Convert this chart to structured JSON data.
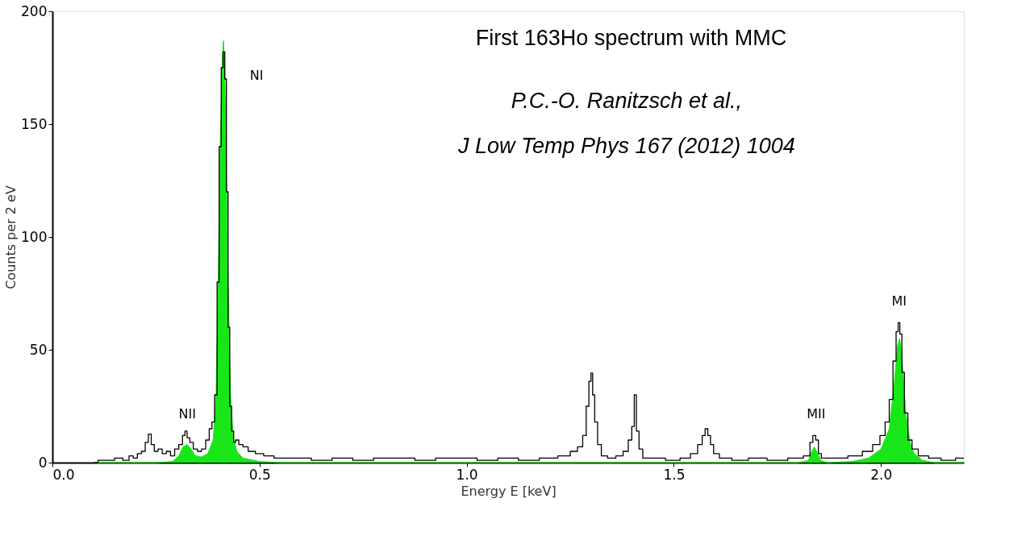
{
  "chart_data": {
    "type": "step",
    "line_style": "solid",
    "title": "First 163Ho spectrum with MMC",
    "xlabel": "Energy E  [keV]",
    "ylabel": "Counts per  2 eV",
    "xlim": [
      0,
      2.2
    ],
    "ylim": [
      0,
      200
    ],
    "xticks": [
      {
        "value": 0,
        "label": "0.0"
      },
      0.5,
      {
        "value": 1,
        "label": "1.0"
      },
      1.5,
      {
        "value": 2,
        "label": "2.0"
      }
    ],
    "yticks": [
      0,
      50,
      100,
      150,
      200
    ],
    "grid": false,
    "annotations": [
      "P.C.-O. Ranitzsch et al.,\nJ Low Temp Phys 167 (2012) 1004",
      "NI",
      "NII",
      "MII",
      "MI"
    ],
    "series": [
      {
        "type": "area",
        "color": "#19e619",
        "x": [
          0.1,
          0.25,
          0.29,
          0.305,
          0.315,
          0.325,
          0.335,
          0.345,
          0.36,
          0.375,
          0.388,
          0.395,
          0.4,
          0.405,
          0.41,
          0.413,
          0.416,
          0.42,
          0.425,
          0.43,
          0.436,
          0.445,
          0.46,
          0.5,
          0.55,
          1.8,
          1.825,
          1.833,
          1.839,
          1.845,
          1.855,
          1.87,
          1.93,
          1.97,
          2.0,
          2.02,
          2.032,
          2.04,
          2.045,
          2.05,
          2.06,
          2.07,
          2.08,
          2.1,
          2.13,
          2.2
        ],
        "values": [
          0,
          0,
          0.5,
          3,
          7,
          8,
          6,
          3,
          2.5,
          4,
          10,
          30,
          80,
          140,
          180,
          187,
          175,
          130,
          70,
          30,
          12,
          5,
          2,
          0.5,
          0,
          0,
          1,
          5,
          7,
          5,
          1,
          0,
          0.5,
          2,
          6,
          15,
          35,
          52,
          55,
          48,
          22,
          9,
          4,
          1,
          0,
          0
        ]
      },
      {
        "color": "#000000",
        "x": [
          0.1,
          0.12,
          0.14,
          0.16,
          0.18,
          0.19,
          0.2,
          0.21,
          0.22,
          0.228,
          0.235,
          0.242,
          0.25,
          0.26,
          0.27,
          0.28,
          0.29,
          0.3,
          0.31,
          0.318,
          0.322,
          0.328,
          0.335,
          0.345,
          0.355,
          0.365,
          0.375,
          0.382,
          0.388,
          0.395,
          0.4,
          0.405,
          0.41,
          0.414,
          0.418,
          0.422,
          0.426,
          0.43,
          0.435,
          0.44,
          0.445,
          0.455,
          0.465,
          0.48,
          0.5,
          0.52,
          0.55,
          0.6,
          0.65,
          0.7,
          0.75,
          0.8,
          0.85,
          0.9,
          0.95,
          1.0,
          1.05,
          1.1,
          1.15,
          1.2,
          1.24,
          1.26,
          1.275,
          1.285,
          1.292,
          1.298,
          1.302,
          1.306,
          1.312,
          1.32,
          1.33,
          1.35,
          1.37,
          1.385,
          1.395,
          1.402,
          1.407,
          1.412,
          1.42,
          1.43,
          1.46,
          1.5,
          1.53,
          1.55,
          1.565,
          1.572,
          1.579,
          1.585,
          1.592,
          1.6,
          1.62,
          1.66,
          1.7,
          1.75,
          1.8,
          1.825,
          1.832,
          1.839,
          1.846,
          1.852,
          1.86,
          1.9,
          1.94,
          1.97,
          1.99,
          2.005,
          2.015,
          2.025,
          2.033,
          2.04,
          2.043,
          2.048,
          2.053,
          2.06,
          2.07,
          2.08,
          2.1,
          2.13,
          2.16,
          2.2
        ],
        "values": [
          0,
          1,
          1,
          2,
          1,
          3,
          2,
          4,
          5,
          9,
          12.6,
          8,
          5,
          6,
          4,
          5,
          3,
          6,
          8,
          12,
          14,
          11,
          9,
          6,
          5,
          6,
          10,
          15,
          18,
          30,
          80,
          140,
          175,
          182,
          170,
          120,
          60,
          25,
          14,
          9,
          10,
          8,
          7,
          5,
          4,
          3,
          2,
          2,
          1,
          2,
          1,
          2,
          2,
          1,
          2,
          2,
          1,
          2,
          1,
          2,
          3,
          5,
          7,
          12,
          25,
          36,
          39.7,
          30,
          18,
          8,
          3,
          2,
          3,
          5,
          10,
          16,
          30,
          14,
          6,
          2,
          2,
          1,
          2,
          4,
          8,
          12,
          15,
          12,
          8,
          4,
          2,
          1,
          2,
          1,
          2,
          3,
          9,
          12,
          10,
          4,
          2,
          2,
          3,
          5,
          8,
          12,
          18,
          28,
          45,
          58,
          62,
          57,
          40,
          22,
          10,
          6,
          3,
          2,
          1,
          2
        ]
      }
    ]
  }
}
